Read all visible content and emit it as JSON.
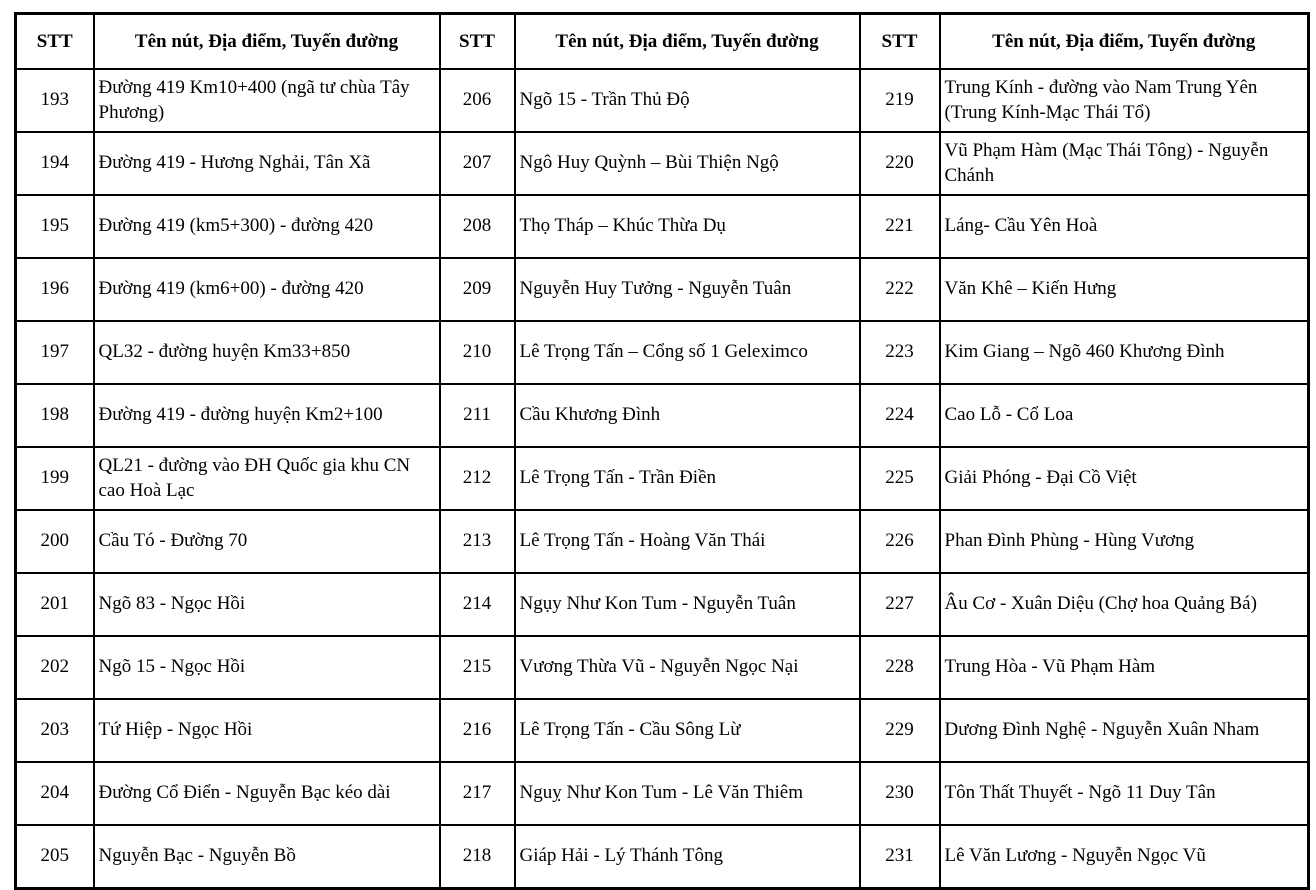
{
  "table": {
    "header": {
      "stt": "STT",
      "name": "Tên nút, Địa điểm, Tuyến đường"
    },
    "groups": [
      {
        "rows": [
          {
            "stt": "193",
            "name": "Đường 419 Km10+400 (ngã tư chùa Tây Phương)"
          },
          {
            "stt": "194",
            "name": "Đường 419 - Hương Nghải, Tân Xã"
          },
          {
            "stt": "195",
            "name": "Đường 419 (km5+300) - đường 420"
          },
          {
            "stt": "196",
            "name": "Đường 419 (km6+00) - đường 420"
          },
          {
            "stt": "197",
            "name": "QL32 - đường huyện Km33+850"
          },
          {
            "stt": "198",
            "name": "Đường 419 - đường huyện Km2+100"
          },
          {
            "stt": "199",
            "name": "QL21 - đường vào ĐH Quốc gia khu CN cao Hoà Lạc"
          },
          {
            "stt": "200",
            "name": "Cầu Tó - Đường 70"
          },
          {
            "stt": "201",
            "name": "Ngõ 83 - Ngọc Hồi"
          },
          {
            "stt": "202",
            "name": "Ngõ 15 - Ngọc Hồi"
          },
          {
            "stt": "203",
            "name": "Tứ Hiệp - Ngọc Hồi"
          },
          {
            "stt": "204",
            "name": "Đường Cổ Điển - Nguyễn Bạc kéo dài"
          },
          {
            "stt": "205",
            "name": "Nguyễn Bạc - Nguyễn Bồ"
          }
        ]
      },
      {
        "rows": [
          {
            "stt": "206",
            "name": "Ngõ 15 - Trần Thủ Độ"
          },
          {
            "stt": "207",
            "name": "Ngô Huy Quỳnh – Bùi Thiện Ngộ"
          },
          {
            "stt": "208",
            "name": "Thọ Tháp – Khúc Thừa Dụ"
          },
          {
            "stt": "209",
            "name": "Nguyễn Huy Tưởng - Nguyễn Tuân"
          },
          {
            "stt": "210",
            "name": "Lê Trọng Tấn – Cổng số 1 Geleximco"
          },
          {
            "stt": "211",
            "name": "Cầu Khương Đình"
          },
          {
            "stt": "212",
            "name": "Lê Trọng Tấn - Trần Điền"
          },
          {
            "stt": "213",
            "name": "Lê Trọng Tấn - Hoàng Văn Thái"
          },
          {
            "stt": "214",
            "name": "Ngụy Như Kon Tum - Nguyễn Tuân"
          },
          {
            "stt": "215",
            "name": "Vương Thừa Vũ - Nguyễn Ngọc Nại"
          },
          {
            "stt": "216",
            "name": "Lê Trọng Tấn - Cầu Sông Lừ"
          },
          {
            "stt": "217",
            "name": "Nguỵ Như Kon Tum - Lê Văn Thiêm"
          },
          {
            "stt": "218",
            "name": "Giáp Hải - Lý Thánh Tông"
          }
        ]
      },
      {
        "rows": [
          {
            "stt": "219",
            "name": "Trung Kính - đường vào Nam Trung Yên (Trung Kính-Mạc Thái Tổ)"
          },
          {
            "stt": "220",
            "name": "Vũ Phạm Hàm (Mạc Thái Tông) - Nguyễn Chánh"
          },
          {
            "stt": "221",
            "name": "Láng- Cầu Yên Hoà"
          },
          {
            "stt": "222",
            "name": "Văn Khê – Kiến Hưng"
          },
          {
            "stt": "223",
            "name": "Kim Giang – Ngõ 460 Khương Đình"
          },
          {
            "stt": "224",
            "name": "Cao Lỗ - Cổ Loa"
          },
          {
            "stt": "225",
            "name": "Giải Phóng - Đại Cồ Việt"
          },
          {
            "stt": "226",
            "name": "Phan Đình Phùng - Hùng Vương"
          },
          {
            "stt": "227",
            "name": "Âu Cơ - Xuân Diệu (Chợ hoa Quảng Bá)"
          },
          {
            "stt": "228",
            "name": "Trung Hòa - Vũ Phạm Hàm"
          },
          {
            "stt": "229",
            "name": "Dương Đình Nghệ - Nguyễn Xuân Nham"
          },
          {
            "stt": "230",
            "name": "Tôn Thất Thuyết - Ngõ 11 Duy Tân"
          },
          {
            "stt": "231",
            "name": "Lê Văn Lương - Nguyễn Ngọc Vũ"
          }
        ]
      }
    ]
  }
}
